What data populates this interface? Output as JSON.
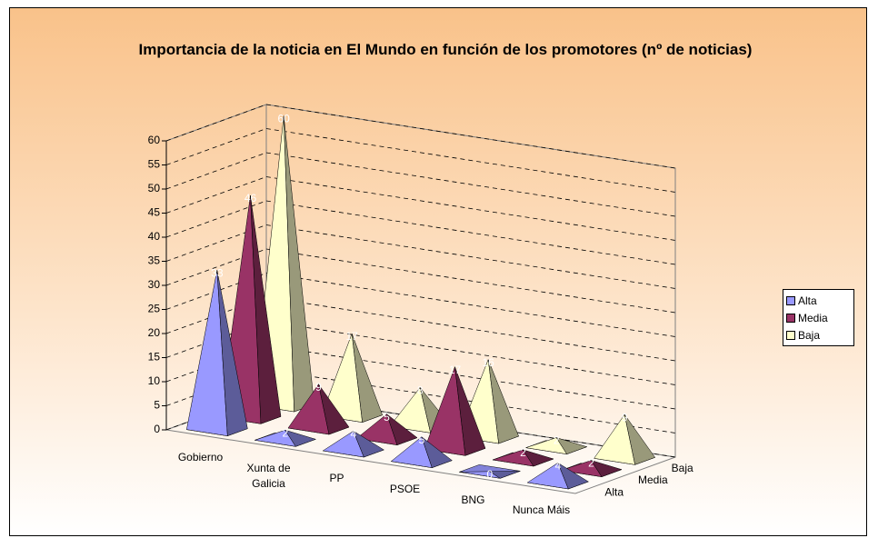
{
  "chart_data": {
    "type": "pyramid3d",
    "title": "Importancia de la noticia en El Mundo en función de los promotores (nº de noticias)",
    "categories": [
      "Gobierno",
      "Xunta de Galicia",
      "PP",
      "PSOE",
      "BNG",
      "Nunca Máis"
    ],
    "series": [
      {
        "name": "Alta",
        "color": "#9999ff",
        "values": [
          33,
          2,
          4,
          5,
          0,
          4
        ]
      },
      {
        "name": "Media",
        "color": "#993366",
        "values": [
          46,
          9,
          5,
          17,
          2,
          2
        ]
      },
      {
        "name": "Baja",
        "color": "#ffffcc",
        "values": [
          60,
          17,
          8,
          16,
          2,
          9
        ]
      }
    ],
    "ylim": [
      0,
      60
    ],
    "yticks": [
      0,
      5,
      10,
      15,
      20,
      25,
      30,
      35,
      40,
      45,
      50,
      55,
      60
    ],
    "grid": true,
    "legend": "right"
  }
}
